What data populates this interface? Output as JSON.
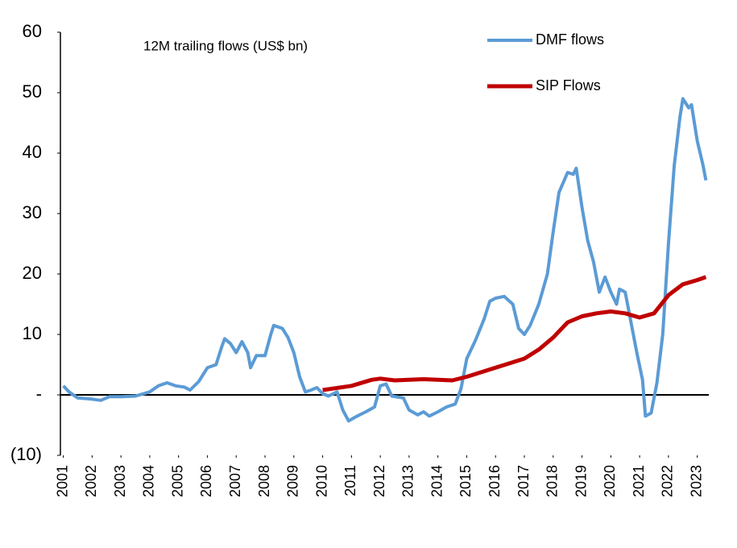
{
  "chart_data": {
    "type": "line",
    "annotation": "12M trailing flows (US$ bn)",
    "xlim": [
      2000.9,
      2023.4
    ],
    "xticks": [
      2001,
      2002,
      2003,
      2004,
      2005,
      2006,
      2007,
      2008,
      2009,
      2010,
      2011,
      2012,
      2013,
      2014,
      2015,
      2016,
      2017,
      2018,
      2019,
      2020,
      2021,
      2022,
      2023
    ],
    "ylim": [
      -10,
      60
    ],
    "yticks": [
      {
        "value": -10,
        "label": "(10)"
      },
      {
        "value": 0,
        "label": "-"
      },
      10,
      20,
      30,
      40,
      50,
      60
    ],
    "grid": false,
    "legend": "top-right",
    "series": [
      {
        "name": "DMF flows",
        "color": "#5b9bd5",
        "x": [
          2001.0,
          2001.2,
          2001.5,
          2002.0,
          2002.3,
          2002.6,
          2003.0,
          2003.5,
          2004.0,
          2004.3,
          2004.6,
          2004.9,
          2005.2,
          2005.4,
          2005.7,
          2006.0,
          2006.3,
          2006.5,
          2006.6,
          2006.8,
          2007.0,
          2007.2,
          2007.4,
          2007.5,
          2007.7,
          2008.0,
          2008.2,
          2008.3,
          2008.6,
          2008.8,
          2009.0,
          2009.2,
          2009.4,
          2009.6,
          2009.8,
          2010.0,
          2010.2,
          2010.5,
          2010.7,
          2010.9,
          2011.2,
          2011.5,
          2011.8,
          2012.0,
          2012.2,
          2012.4,
          2012.8,
          2013.0,
          2013.3,
          2013.5,
          2013.7,
          2014.0,
          2014.3,
          2014.6,
          2014.8,
          2015.0,
          2015.3,
          2015.6,
          2015.8,
          2016.0,
          2016.3,
          2016.6,
          2016.8,
          2017.0,
          2017.2,
          2017.5,
          2017.8,
          2018.0,
          2018.2,
          2018.5,
          2018.7,
          2018.8,
          2019.0,
          2019.2,
          2019.4,
          2019.6,
          2019.8,
          2020.0,
          2020.2,
          2020.3,
          2020.5,
          2020.7,
          2020.9,
          2021.1,
          2021.2,
          2021.4,
          2021.6,
          2021.8,
          2022.0,
          2022.2,
          2022.4,
          2022.5,
          2022.7,
          2022.8,
          2023.0,
          2023.2,
          2023.3
        ],
        "values": [
          1.5,
          0.5,
          -0.5,
          -0.7,
          -0.9,
          -0.3,
          -0.3,
          -0.2,
          0.5,
          1.5,
          2.0,
          1.5,
          1.3,
          0.8,
          2.2,
          4.5,
          5.0,
          8.0,
          9.3,
          8.5,
          7.0,
          8.8,
          7.0,
          4.5,
          6.5,
          6.5,
          10.0,
          11.5,
          11.0,
          9.5,
          7.0,
          3.0,
          0.5,
          0.8,
          1.2,
          0.2,
          -0.2,
          0.5,
          -2.5,
          -4.3,
          -3.5,
          -2.8,
          -2.0,
          1.5,
          1.8,
          -0.2,
          -0.5,
          -2.5,
          -3.3,
          -2.8,
          -3.5,
          -2.8,
          -2.0,
          -1.5,
          1.0,
          6.0,
          9.0,
          12.5,
          15.5,
          16.0,
          16.3,
          15.0,
          11.0,
          10.0,
          11.5,
          15.0,
          20.0,
          27.0,
          33.5,
          36.8,
          36.5,
          37.5,
          31.0,
          25.5,
          22.0,
          17.0,
          19.5,
          17.0,
          15.0,
          17.5,
          17.0,
          12.0,
          7.0,
          2.5,
          -3.5,
          -3.0,
          2.0,
          10.0,
          25.0,
          38.0,
          46.0,
          49.0,
          47.5,
          48.0,
          42.0,
          38.0,
          35.5
        ]
      },
      {
        "name": "SIP Flows",
        "color": "#c00000",
        "x": [
          2010.0,
          2011.0,
          2011.7,
          2012.0,
          2012.5,
          2013.0,
          2013.5,
          2014.5,
          2015.0,
          2016.0,
          2017.0,
          2017.5,
          2018.0,
          2018.5,
          2019.0,
          2019.5,
          2020.0,
          2020.5,
          2021.0,
          2021.5,
          2022.0,
          2022.5,
          2023.0,
          2023.3
        ],
        "values": [
          0.8,
          1.5,
          2.5,
          2.7,
          2.4,
          2.5,
          2.6,
          2.4,
          3.0,
          4.5,
          6.0,
          7.5,
          9.5,
          12.0,
          13.0,
          13.5,
          13.8,
          13.5,
          12.8,
          13.5,
          16.5,
          18.3,
          19.0,
          19.5
        ]
      }
    ]
  }
}
